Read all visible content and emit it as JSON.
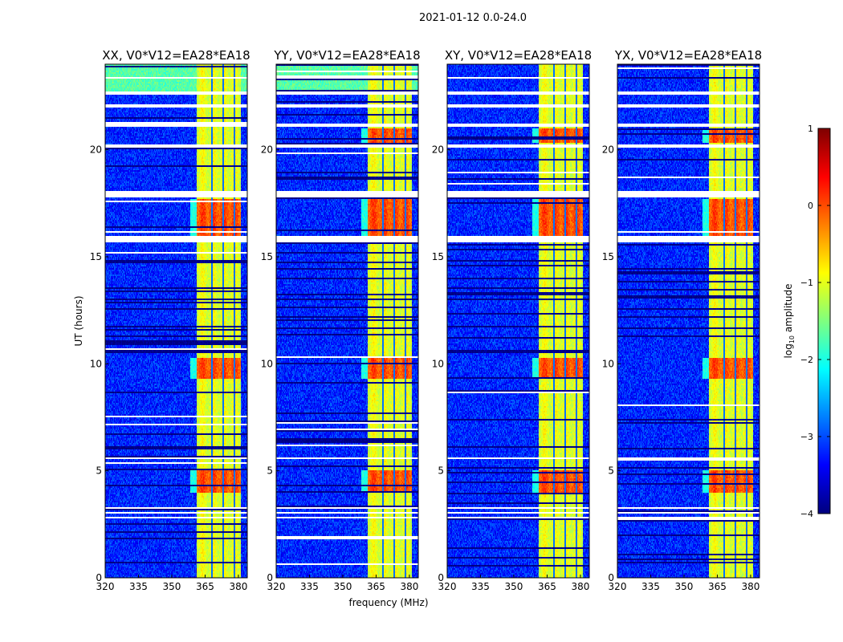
{
  "figure": {
    "suptitle": "2021-01-12 0.0-24.0"
  },
  "chart_data": {
    "type": "heatmap",
    "xlabel": "frequency (MHz)",
    "ylabel": "UT (hours)",
    "xlim": [
      320,
      384
    ],
    "ylim": [
      0,
      24
    ],
    "xticks": [
      "320",
      "335",
      "350",
      "365",
      "380"
    ],
    "xtick_values": [
      320,
      335,
      350,
      365,
      380
    ],
    "yticks": [
      "0",
      "5",
      "10",
      "15",
      "20"
    ],
    "ytick_values": [
      0,
      5,
      10,
      15,
      20
    ],
    "panels": [
      {
        "title": "XX, V0*V12=EA28*EA18",
        "seed": 11
      },
      {
        "title": "YY, V0*V12=EA28*EA18",
        "seed": 23
      },
      {
        "title": "XY, V0*V12=EA28*EA18",
        "seed": 37
      },
      {
        "title": "YX, V0*V12=EA28*EA18",
        "seed": 51
      }
    ],
    "colormap": "jet",
    "colorbar": {
      "label_prefix": "log",
      "label_sub": "10",
      "label_suffix": " amplitude",
      "range": [
        -4,
        1
      ],
      "ticks": [
        "1",
        "0",
        "−1",
        "−2",
        "−3",
        "−4"
      ],
      "tick_values": [
        1,
        0,
        -1,
        -2,
        -3,
        -4
      ]
    },
    "background_level": -3.2,
    "rfi_band_mhz": [
      361,
      381
    ],
    "rfi_level": -1.0,
    "rfi_channel_edges_mhz": [
      368,
      373,
      378
    ],
    "strong_rfi_hours": [
      [
        4.0,
        5.0
      ],
      [
        9.3,
        10.3
      ],
      [
        16.0,
        17.7
      ],
      [
        20.3,
        21.0
      ]
    ],
    "flagged_hours": [
      [
        2.75,
        2.85
      ],
      [
        3.0,
        3.1
      ],
      [
        3.2,
        3.3
      ],
      [
        5.0,
        5.05
      ],
      [
        5.55,
        5.6
      ],
      [
        15.7,
        15.95
      ],
      [
        17.75,
        18.05
      ],
      [
        19.7,
        19.75
      ],
      [
        20.1,
        20.25
      ],
      [
        21.1,
        21.2
      ],
      [
        22.0,
        22.1
      ],
      [
        22.6,
        22.7
      ]
    ]
  }
}
